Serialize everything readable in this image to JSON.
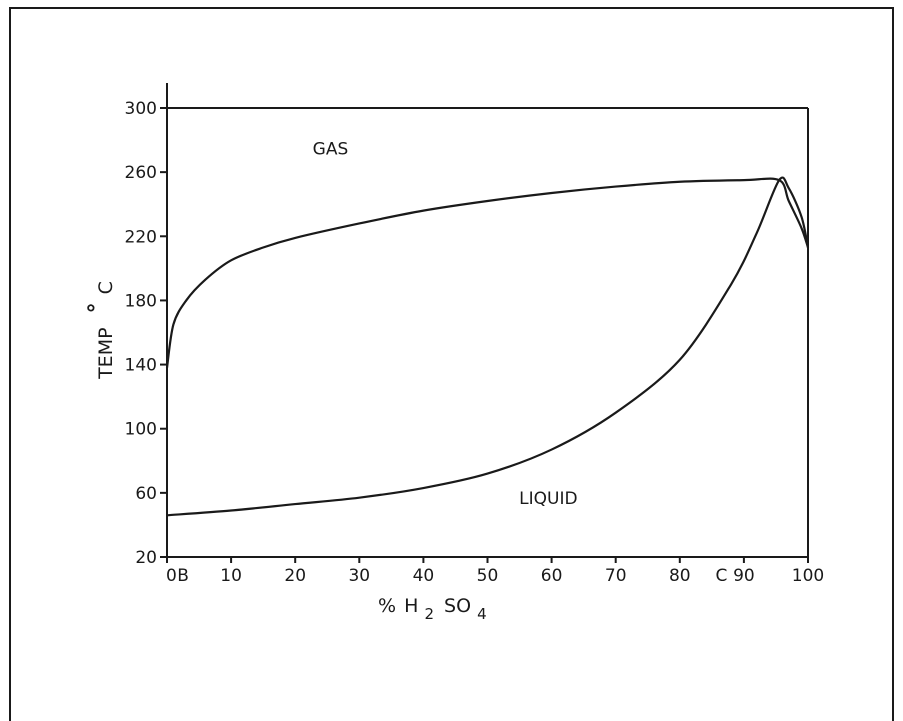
{
  "chart_data": {
    "type": "line",
    "xlabel": {
      "prefix": "%",
      "h": "H",
      "sub1": "2",
      "so": "SO",
      "sub2": "4"
    },
    "ylabel": {
      "main": "TEMP",
      "degree": "°",
      "unit": "C"
    },
    "xlim": [
      0,
      100
    ],
    "ylim": [
      20,
      300
    ],
    "x_ticks": [
      {
        "value": 0,
        "label": "0"
      },
      {
        "value": 10,
        "label": "10"
      },
      {
        "value": 20,
        "label": "20"
      },
      {
        "value": 30,
        "label": "30"
      },
      {
        "value": 40,
        "label": "40"
      },
      {
        "value": 50,
        "label": "50"
      },
      {
        "value": 60,
        "label": "60"
      },
      {
        "value": 70,
        "label": "70"
      },
      {
        "value": 80,
        "label": "80"
      },
      {
        "value": 90,
        "label": "90"
      },
      {
        "value": 100,
        "label": "100"
      }
    ],
    "y_ticks": [
      {
        "value": 20,
        "label": "20"
      },
      {
        "value": 60,
        "label": "60"
      },
      {
        "value": 100,
        "label": "100"
      },
      {
        "value": 140,
        "label": "140"
      },
      {
        "value": 180,
        "label": "180"
      },
      {
        "value": 220,
        "label": "220"
      },
      {
        "value": 260,
        "label": "260"
      },
      {
        "value": 300,
        "label": "300"
      }
    ],
    "point_labels": [
      {
        "text": "B",
        "x": 2.5
      },
      {
        "text": "C",
        "x": 86.5
      }
    ],
    "region_labels": [
      {
        "text": "GAS",
        "x": 25.5,
        "y": 271
      },
      {
        "text": "LIQUID",
        "x": 59.5,
        "y": 53
      }
    ],
    "series": [
      {
        "x": [
          0,
          1,
          3,
          6,
          10,
          15,
          20,
          30,
          40,
          50,
          60,
          70,
          80,
          90,
          95.5,
          97,
          99,
          100
        ],
        "y": [
          138,
          165,
          180,
          193,
          205,
          213,
          219,
          228,
          236,
          242,
          247,
          251,
          254,
          255,
          255,
          242,
          225,
          213
        ]
      },
      {
        "x": [
          0,
          10,
          20,
          30,
          40,
          50,
          60,
          70,
          80,
          88,
          92,
          95.5,
          97,
          99,
          100
        ],
        "y": [
          46,
          49,
          53,
          57,
          63,
          72,
          87,
          110,
          143,
          190,
          222,
          255,
          250,
          232,
          213
        ]
      }
    ]
  }
}
